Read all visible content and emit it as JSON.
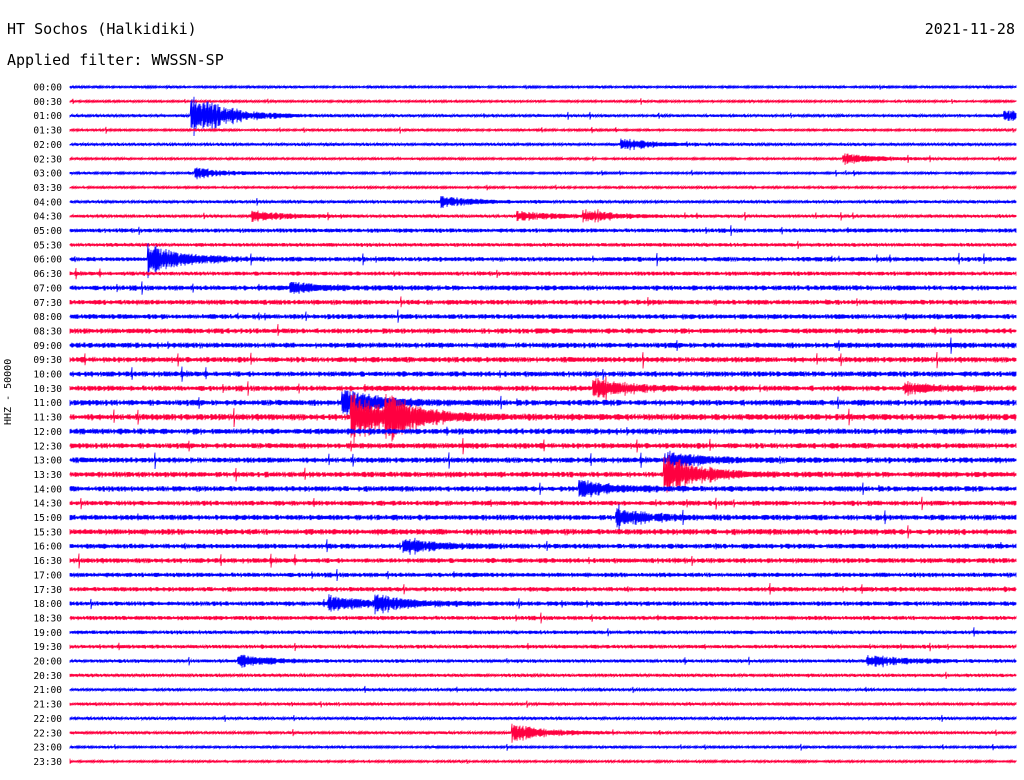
{
  "header": {
    "station": "HT Sochos (Halkidiki)",
    "date": "2021-11-28",
    "filter": "Applied filter: WWSSN-SP"
  },
  "chart_data": {
    "type": "line",
    "title": "HT Sochos (Halkidiki)",
    "ylabel": "HHZ - 50000",
    "row_labels": [
      "00:00",
      "00:30",
      "01:00",
      "01:30",
      "02:00",
      "02:30",
      "03:00",
      "03:30",
      "04:00",
      "04:30",
      "05:00",
      "05:30",
      "06:00",
      "06:30",
      "07:00",
      "07:30",
      "08:00",
      "08:30",
      "09:00",
      "09:30",
      "10:00",
      "10:30",
      "11:00",
      "11:30",
      "12:00",
      "12:30",
      "13:00",
      "13:30",
      "14:00",
      "14:30",
      "15:00",
      "15:30",
      "16:00",
      "16:30",
      "17:00",
      "17:30",
      "18:00",
      "18:30",
      "19:00",
      "19:30",
      "20:00",
      "20:30",
      "21:00",
      "21:30",
      "22:00",
      "22:30",
      "23:00",
      "23:30"
    ],
    "colors": [
      "#0000ff",
      "#ff0040"
    ],
    "noise_level": [
      1,
      1,
      1.2,
      1,
      1.2,
      1,
      1,
      1,
      1.3,
      1.3,
      1.8,
      1.6,
      2,
      1.8,
      2.2,
      2.2,
      2.2,
      2.3,
      2.4,
      2.4,
      2.4,
      2.4,
      2.6,
      2.8,
      2.6,
      2.4,
      2.4,
      2.4,
      2.4,
      2.2,
      2.4,
      2.6,
      2.2,
      2.2,
      2,
      2,
      2,
      1.8,
      1.6,
      1.6,
      1.4,
      1.4,
      1.2,
      1.2,
      1.2,
      1.2,
      1,
      1
    ],
    "events": [
      {
        "row": 2,
        "pos": 0.13,
        "amp": 22
      },
      {
        "row": 2,
        "pos": 0.99,
        "amp": 5
      },
      {
        "row": 4,
        "pos": 0.585,
        "amp": 5
      },
      {
        "row": 5,
        "pos": 0.82,
        "amp": 5
      },
      {
        "row": 6,
        "pos": 0.135,
        "amp": 5
      },
      {
        "row": 8,
        "pos": 0.395,
        "amp": 5
      },
      {
        "row": 9,
        "pos": 0.195,
        "amp": 5
      },
      {
        "row": 9,
        "pos": 0.475,
        "amp": 5
      },
      {
        "row": 9,
        "pos": 0.545,
        "amp": 5
      },
      {
        "row": 12,
        "pos": 0.085,
        "amp": 14
      },
      {
        "row": 14,
        "pos": 0.235,
        "amp": 5
      },
      {
        "row": 21,
        "pos": 0.555,
        "amp": 9
      },
      {
        "row": 21,
        "pos": 0.885,
        "amp": 5
      },
      {
        "row": 22,
        "pos": 0.29,
        "amp": 14
      },
      {
        "row": 23,
        "pos": 0.3,
        "amp": 22
      },
      {
        "row": 23,
        "pos": 0.335,
        "amp": 18
      },
      {
        "row": 26,
        "pos": 0.635,
        "amp": 8
      },
      {
        "row": 27,
        "pos": 0.63,
        "amp": 20
      },
      {
        "row": 28,
        "pos": 0.54,
        "amp": 8
      },
      {
        "row": 30,
        "pos": 0.58,
        "amp": 8
      },
      {
        "row": 32,
        "pos": 0.355,
        "amp": 6
      },
      {
        "row": 36,
        "pos": 0.275,
        "amp": 8
      },
      {
        "row": 36,
        "pos": 0.325,
        "amp": 7
      },
      {
        "row": 40,
        "pos": 0.18,
        "amp": 6
      },
      {
        "row": 40,
        "pos": 0.845,
        "amp": 6
      },
      {
        "row": 45,
        "pos": 0.47,
        "amp": 8
      }
    ]
  }
}
